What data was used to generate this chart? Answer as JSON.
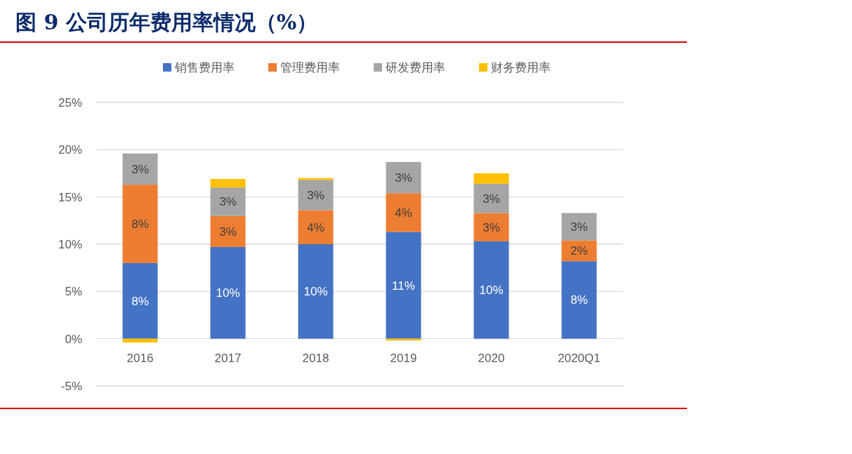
{
  "chart_data": {
    "type": "bar",
    "title": "图 9 公司历年费用率情况（%）",
    "categories": [
      "2016",
      "2017",
      "2018",
      "2019",
      "2020",
      "2020Q1"
    ],
    "stacked": true,
    "series": [
      {
        "name": "销售费用率",
        "color": "#4472c4",
        "values": [
          8.0,
          9.7,
          10.0,
          11.3,
          10.3,
          8.2
        ],
        "value_labels": [
          "8%",
          "10%",
          "10%",
          "11%",
          "10%",
          "8%"
        ]
      },
      {
        "name": "管理费用率",
        "color": "#ed7d31",
        "values": [
          8.3,
          3.3,
          3.6,
          4.1,
          3.0,
          2.2
        ],
        "value_labels": [
          "8%",
          "3%",
          "4%",
          "4%",
          "3%",
          "2%"
        ]
      },
      {
        "name": "研发费用率",
        "color": "#a5a5a5",
        "values": [
          3.3,
          3.0,
          3.2,
          3.3,
          3.1,
          2.9
        ],
        "value_labels": [
          "3%",
          "3%",
          "3%",
          "3%",
          "3%",
          "3%"
        ]
      },
      {
        "name": "财务费用率",
        "color": "#ffc000",
        "values": [
          -0.4,
          0.9,
          0.2,
          -0.2,
          1.1,
          0
        ]
      }
    ],
    "ylim": [
      -5,
      25
    ],
    "yticks": [
      {
        "value": -5,
        "label": "-5%"
      },
      {
        "value": 0,
        "label": "0%"
      },
      {
        "value": 5,
        "label": "5%"
      },
      {
        "value": 10,
        "label": "10%"
      },
      {
        "value": 15,
        "label": "15%"
      },
      {
        "value": 20,
        "label": "20%"
      },
      {
        "value": 25,
        "label": "25%"
      }
    ],
    "grid": "y",
    "legend": "top"
  }
}
